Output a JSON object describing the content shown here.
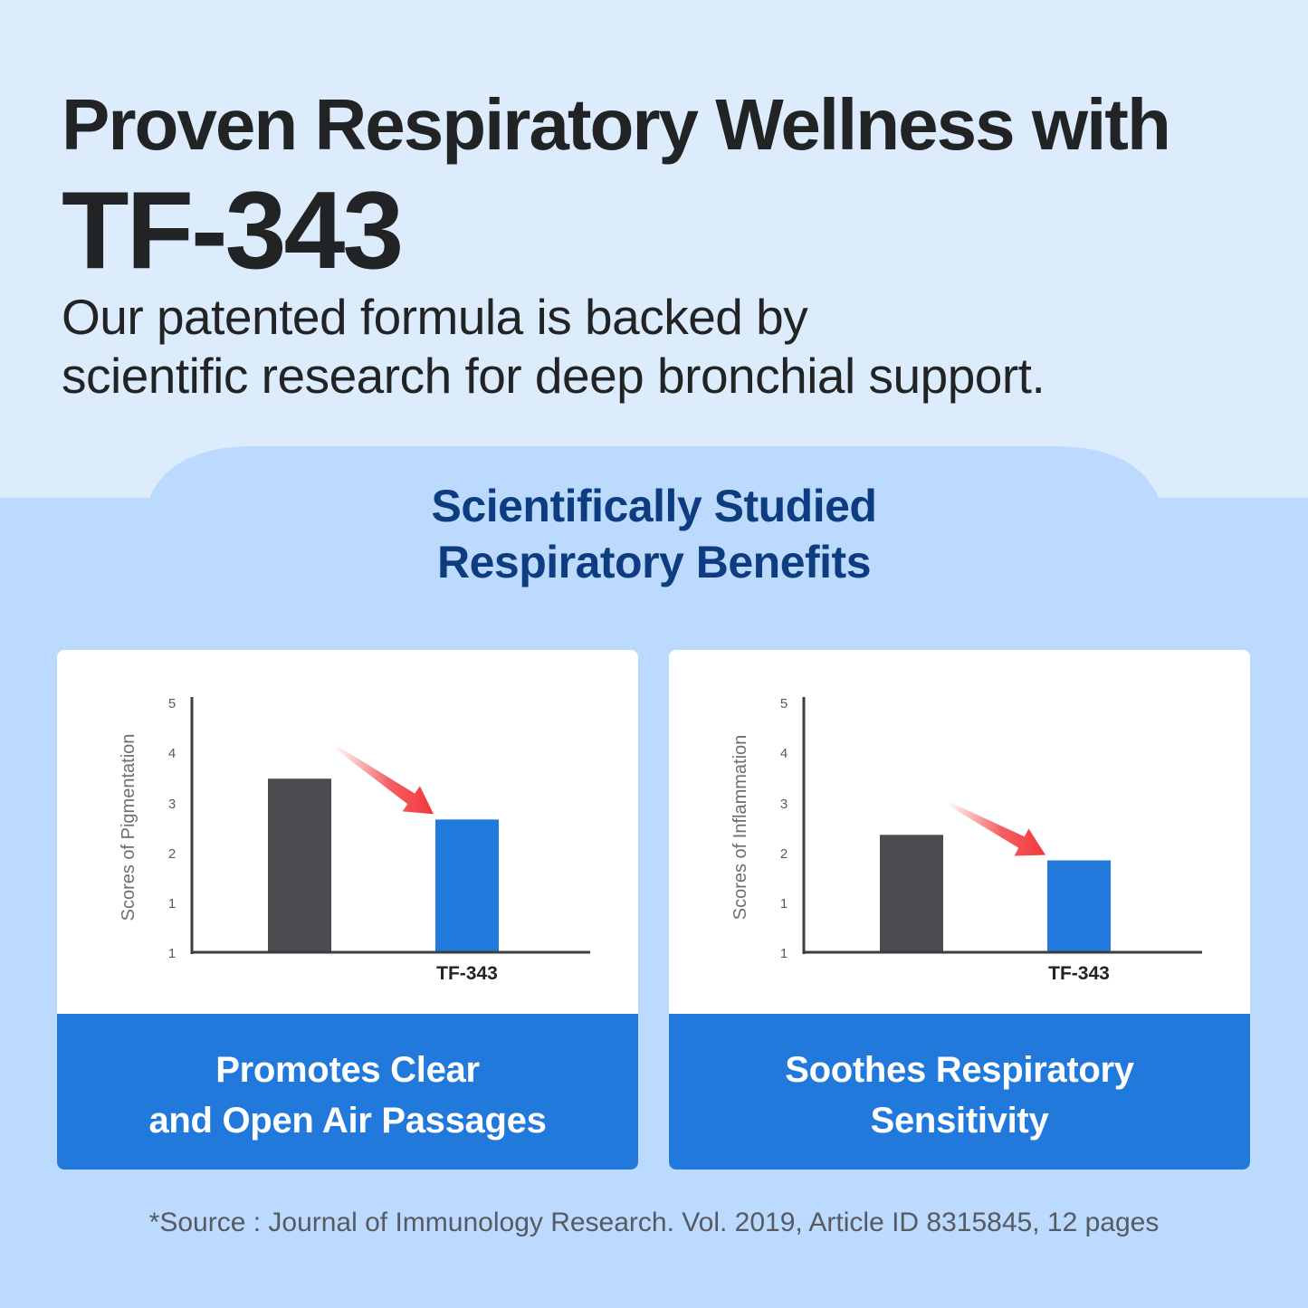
{
  "header": {
    "title_line1": "Proven Respiratory Wellness with",
    "title_line2": "TF-343",
    "subtitle_line1": "Our patented formula is backed by",
    "subtitle_line2": "scientific research for deep bronchial support."
  },
  "section": {
    "title_line1": "Scientifically Studied",
    "title_line2": "Respiratory Benefits"
  },
  "colors": {
    "background": "#ddecfd",
    "panel": "#bbdafd",
    "title_text": "#222325",
    "section_title": "#0d3c80",
    "bar_control": "#4b4b50",
    "bar_product": "#2279dc",
    "arrow": "#f2373c",
    "caption_bg": "#2279dc"
  },
  "chart_data": [
    {
      "type": "bar",
      "ylabel": "Scores of Pigmentation",
      "yticks": [
        "1",
        "1",
        "2",
        "3",
        "4",
        "5"
      ],
      "categories": [
        "",
        "TF-343"
      ],
      "values": [
        3.4,
        2.6
      ],
      "ylim": [
        0,
        5
      ],
      "annotation": "red arrow pointing down from first bar toward TF-343 bar",
      "caption_line1": "Promotes Clear",
      "caption_line2": "and Open Air Passages"
    },
    {
      "type": "bar",
      "ylabel": "Scores of Inflammation",
      "yticks": [
        "1",
        "1",
        "2",
        "3",
        "4",
        "5"
      ],
      "categories": [
        "",
        "TF-343"
      ],
      "values": [
        2.3,
        1.8
      ],
      "ylim": [
        0,
        5
      ],
      "annotation": "red arrow pointing down from first bar toward TF-343 bar",
      "caption_line1": "Soothes Respiratory",
      "caption_line2": "Sensitivity"
    }
  ],
  "footer": {
    "source": "*Source : Journal of Immunology Research. Vol. 2019, Article ID 8315845, 12 pages"
  }
}
